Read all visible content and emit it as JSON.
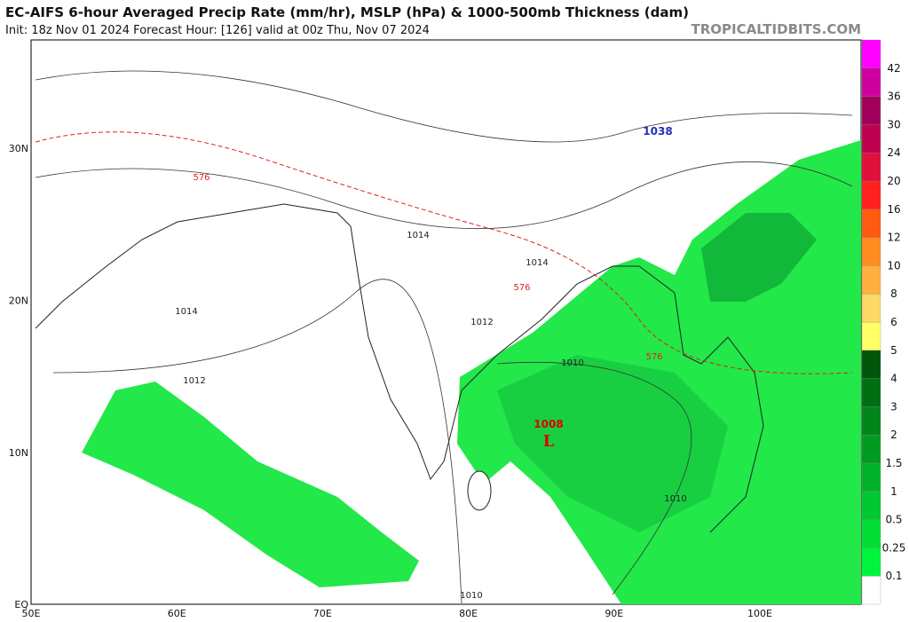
{
  "header": {
    "title": "EC-AIFS 6-hour Averaged Precip Rate (mm/hr), MSLP (hPa) & 1000-500mb Thickness (dam)",
    "subtitle": "Init: 18z Nov 01 2024   Forecast Hour: [126]   valid at 00z Thu, Nov 07 2024",
    "watermark": "TROPICALTIDBITS.COM"
  },
  "axes": {
    "lon_labels": [
      "50E",
      "60E",
      "70E",
      "80E",
      "90E",
      "100E"
    ],
    "lat_labels": [
      "30N",
      "20N",
      "10N",
      "EQ"
    ]
  },
  "map_labels": {
    "isobars": [
      "1012",
      "1014",
      "1010",
      "1010",
      "1010",
      "1012",
      "1014",
      "1014"
    ],
    "thickness": [
      "576",
      "576",
      "576"
    ],
    "low_pressure": "1008",
    "low_marker": "L",
    "high_pressure": "1038"
  },
  "colorbar": {
    "levels": [
      "0.1",
      "0.25",
      "0.5",
      "1",
      "1.5",
      "2",
      "3",
      "4",
      "5",
      "6",
      "8",
      "10",
      "12",
      "16",
      "20",
      "24",
      "30",
      "36",
      "42"
    ],
    "colors": [
      "#ffffff",
      "#00f43c",
      "#00de36",
      "#00c830",
      "#00b22a",
      "#009c22",
      "#00861a",
      "#006e12",
      "#00560a",
      "#ffff66",
      "#ffd966",
      "#ffb040",
      "#ff8c20",
      "#ff5a10",
      "#ff2020",
      "#e0103c",
      "#c00050",
      "#a0005a",
      "#d000a0",
      "#ff00ff"
    ]
  }
}
